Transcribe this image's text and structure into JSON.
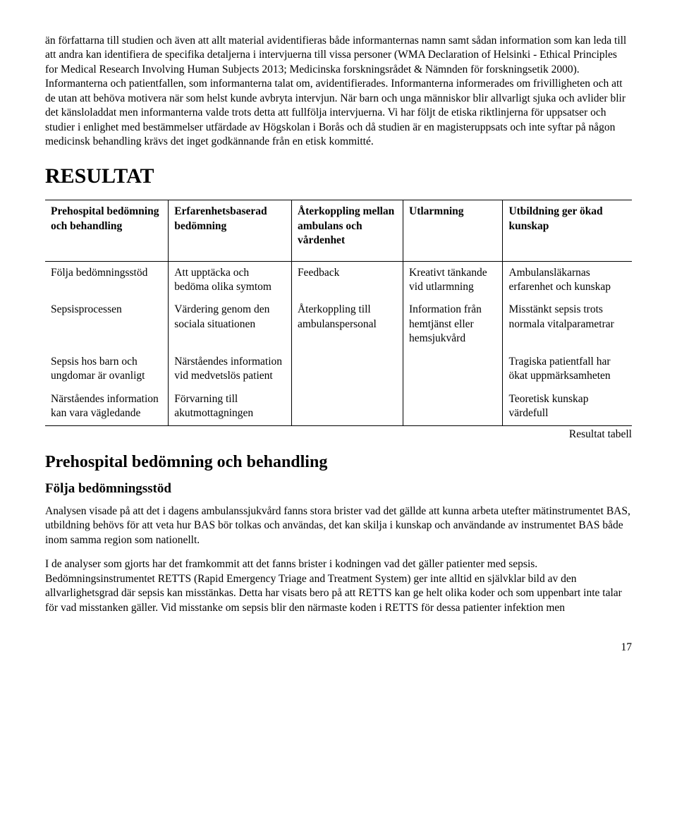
{
  "intro": {
    "p1": "än författarna till studien och även att allt material avidentifieras både informanternas namn samt sådan information som kan leda till att andra kan identifiera de specifika detaljerna i intervjuerna till vissa personer (WMA Declaration of Helsinki - Ethical Principles for Medical Research Involving Human Subjects 2013; Medicinska forskningsrådet & Nämnden för forskningsetik 2000). Informanterna och patientfallen, som informanterna talat om, avidentifierades. Informanterna informerades om frivilligheten och att de utan att behöva motivera när som helst kunde avbryta intervjun. När barn och unga människor blir allvarligt sjuka och avlider blir det känsloladdat men informanterna valde trots detta att fullfölja intervjuerna. Vi har följt de etiska riktlinjerna för uppsatser och studier i enlighet med bestämmelser utfärdade av Högskolan i Borås och då studien är en magisteruppsats och inte syftar på någon medicinsk behandling krävs det inget godkännande från en etisk kommitté."
  },
  "headings": {
    "resultat": "RESULTAT",
    "sub1": "Prehospital bedömning och behandling",
    "sub2": "Följa bedömningsstöd"
  },
  "table": {
    "headers": [
      "Prehospital bedömning och behandling",
      "Erfarenhetsbaserad bedömning",
      "Återkoppling mellan ambulans och vårdenhet",
      "Utlarmning",
      "Utbildning ger ökad kunskap"
    ],
    "rows": [
      [
        "Följa bedömningsstöd",
        "Att upptäcka och bedöma olika symtom",
        "Feedback",
        "Kreativt tänkande vid utlarmning",
        "Ambulansläkarnas erfarenhet och kunskap"
      ],
      [
        "Sepsisprocessen",
        "Värdering genom den sociala situationen",
        "Återkoppling till ambulanspersonal",
        "Information från hemtjänst eller hemsjukvård",
        "Misstänkt sepsis trots normala vitalparametrar"
      ],
      [
        "Sepsis hos barn och ungdomar är ovanligt",
        "Närståendes information vid medvetslös patient",
        "",
        "",
        "Tragiska patientfall har ökat uppmärksamheten"
      ],
      [
        "Närståendes information kan vara vägledande",
        "Förvarning till akutmottagningen",
        "",
        "",
        "Teoretisk kunskap värdefull"
      ]
    ],
    "caption": "Resultat tabell"
  },
  "body": {
    "p2": "Analysen visade på att det i dagens ambulanssjukvård fanns stora brister vad det gällde att kunna arbeta utefter mätinstrumentet BAS, utbildning behövs för att veta hur BAS bör tolkas och användas, det kan skilja i kunskap och användande av instrumentet BAS både inom samma region som nationellt.",
    "p3": "I de analyser som gjorts har det framkommit att det fanns brister i kodningen vad det gäller patienter med sepsis. Bedömningsinstrumentet RETTS (Rapid Emergency Triage and Treatment System) ger inte alltid en självklar bild av den allvarlighetsgrad där sepsis kan misstänkas. Detta har visats bero på att RETTS kan ge helt olika koder och som uppenbart inte talar för vad misstanken gäller. Vid misstanke om sepsis blir den närmaste koden i RETTS för dessa patienter infektion men"
  },
  "page": "17"
}
